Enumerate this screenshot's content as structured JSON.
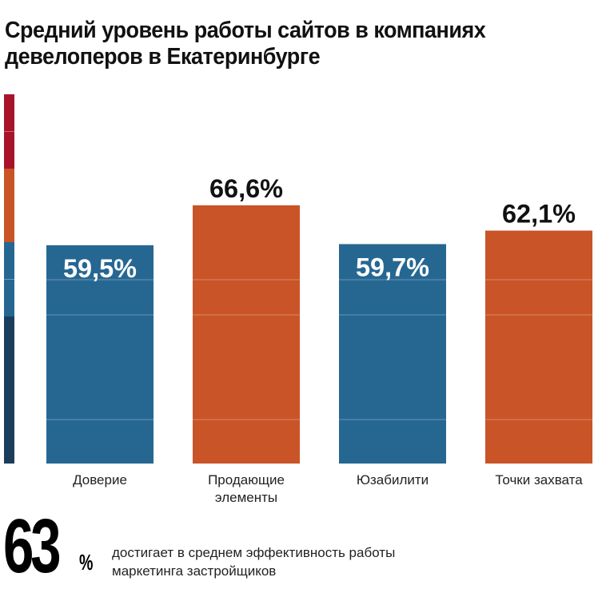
{
  "chart_data": {
    "type": "bar",
    "title": "Средний уровень работы сайтов в компаниях девелоперов в Екатеринбурге",
    "categories": [
      "Доверие",
      "Продающие элементы",
      "Юзабилити",
      "Точки захвата"
    ],
    "values": [
      59.5,
      66.6,
      59.7,
      62.1
    ],
    "labels": [
      "59,5%",
      "66,6%",
      "59,7%",
      "62,1%"
    ],
    "colors": [
      "#266792",
      "#c95427",
      "#266792",
      "#c95427"
    ],
    "scale_colors": [
      "#a8132b",
      "#c95427",
      "#266792",
      "#1b3d5c"
    ],
    "grid": true
  },
  "summary": {
    "value": "63",
    "unit": "%",
    "text_line1": "достигает в среднем эффективность работы",
    "text_line2": "маркетинга застройщиков"
  }
}
